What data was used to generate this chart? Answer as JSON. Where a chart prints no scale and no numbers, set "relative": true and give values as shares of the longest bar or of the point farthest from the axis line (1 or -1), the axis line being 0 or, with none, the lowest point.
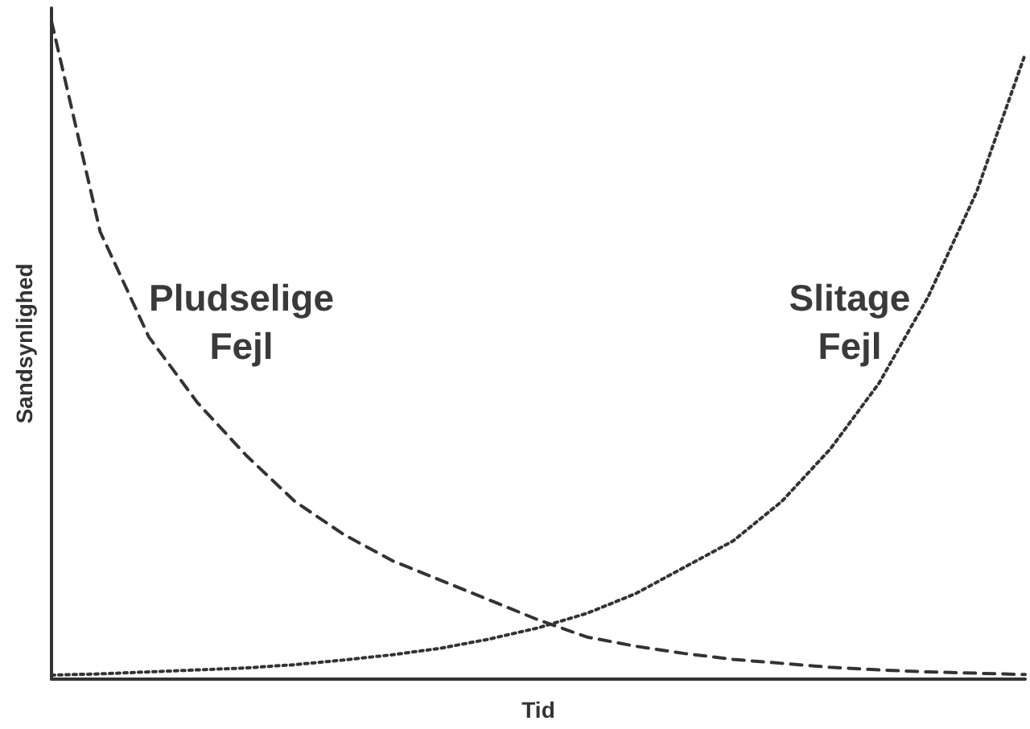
{
  "chart_data": {
    "type": "line",
    "relative": true,
    "xlabel": "Tid",
    "ylabel": "Sandsynlighed",
    "categories": [
      null,
      null,
      null,
      null,
      null,
      null,
      null,
      null,
      null,
      null,
      null,
      null,
      null,
      null,
      null,
      null,
      null,
      null,
      null,
      null,
      null
    ],
    "series": [
      {
        "name": "Pludselige Fejl",
        "color": "#333333",
        "line_style": "dashed",
        "values": [
          1,
          0.68,
          0.52,
          0.42,
          0.34,
          0.27,
          0.22,
          0.18,
          0.15,
          0.12,
          0.09,
          0.064,
          0.05,
          0.039,
          0.03,
          0.024,
          0.018,
          0.014,
          0.011,
          0.009,
          0.007
        ]
      },
      {
        "name": "Slitage Fejl",
        "color": "#333333",
        "line_style": "dotted",
        "values": [
          0.006,
          0.008,
          0.011,
          0.014,
          0.017,
          0.022,
          0.029,
          0.037,
          0.047,
          0.061,
          0.078,
          0.1,
          0.13,
          0.17,
          0.21,
          0.27,
          0.35,
          0.45,
          0.58,
          0.74,
          0.95
        ]
      }
    ],
    "grid": false,
    "legend": false,
    "marker": "none"
  }
}
